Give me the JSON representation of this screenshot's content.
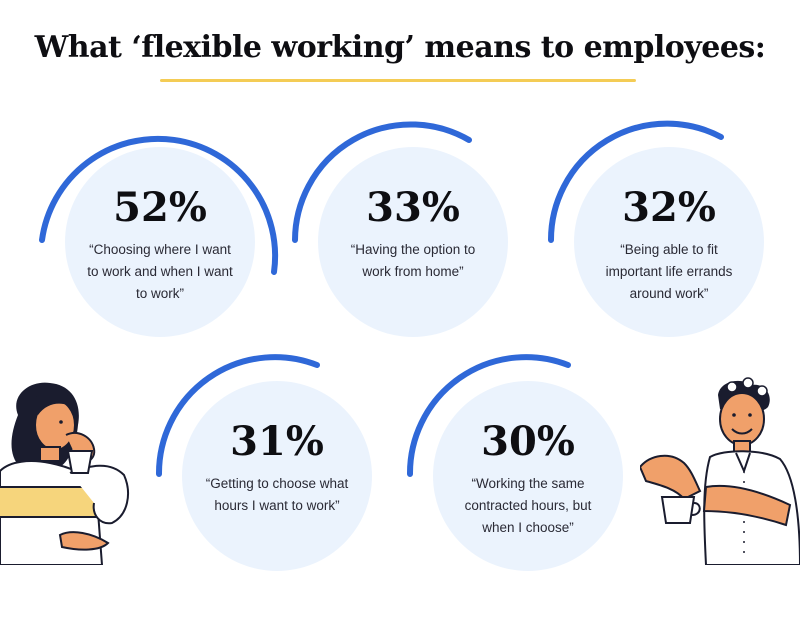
{
  "title": "What ‘flexible working’ means to employees:",
  "colors": {
    "ring": "#2f68d8",
    "circle": "#ebf3fd",
    "underline": "#f4cc55",
    "skin": "#f0a06a",
    "sweater": "#f6d57c",
    "dark": "#1a1c2e"
  },
  "stats": [
    {
      "percent": "52%",
      "text": "“Choosing where I want to work and when I want to work”",
      "value": 52
    },
    {
      "percent": "33%",
      "text": "“Having the option to work from home”",
      "value": 33
    },
    {
      "percent": "32%",
      "text": "“Being able to fit important life errands around work”",
      "value": 32
    },
    {
      "percent": "31%",
      "text": "“Getting to choose what hours I want to work”",
      "value": 31
    },
    {
      "percent": "30%",
      "text": "“Working the same contracted hours, but when I choose”",
      "value": 30
    }
  ],
  "illustrations": {
    "left": "woman-drinking-coffee-illustration",
    "right": "man-holding-cup-illustration"
  }
}
